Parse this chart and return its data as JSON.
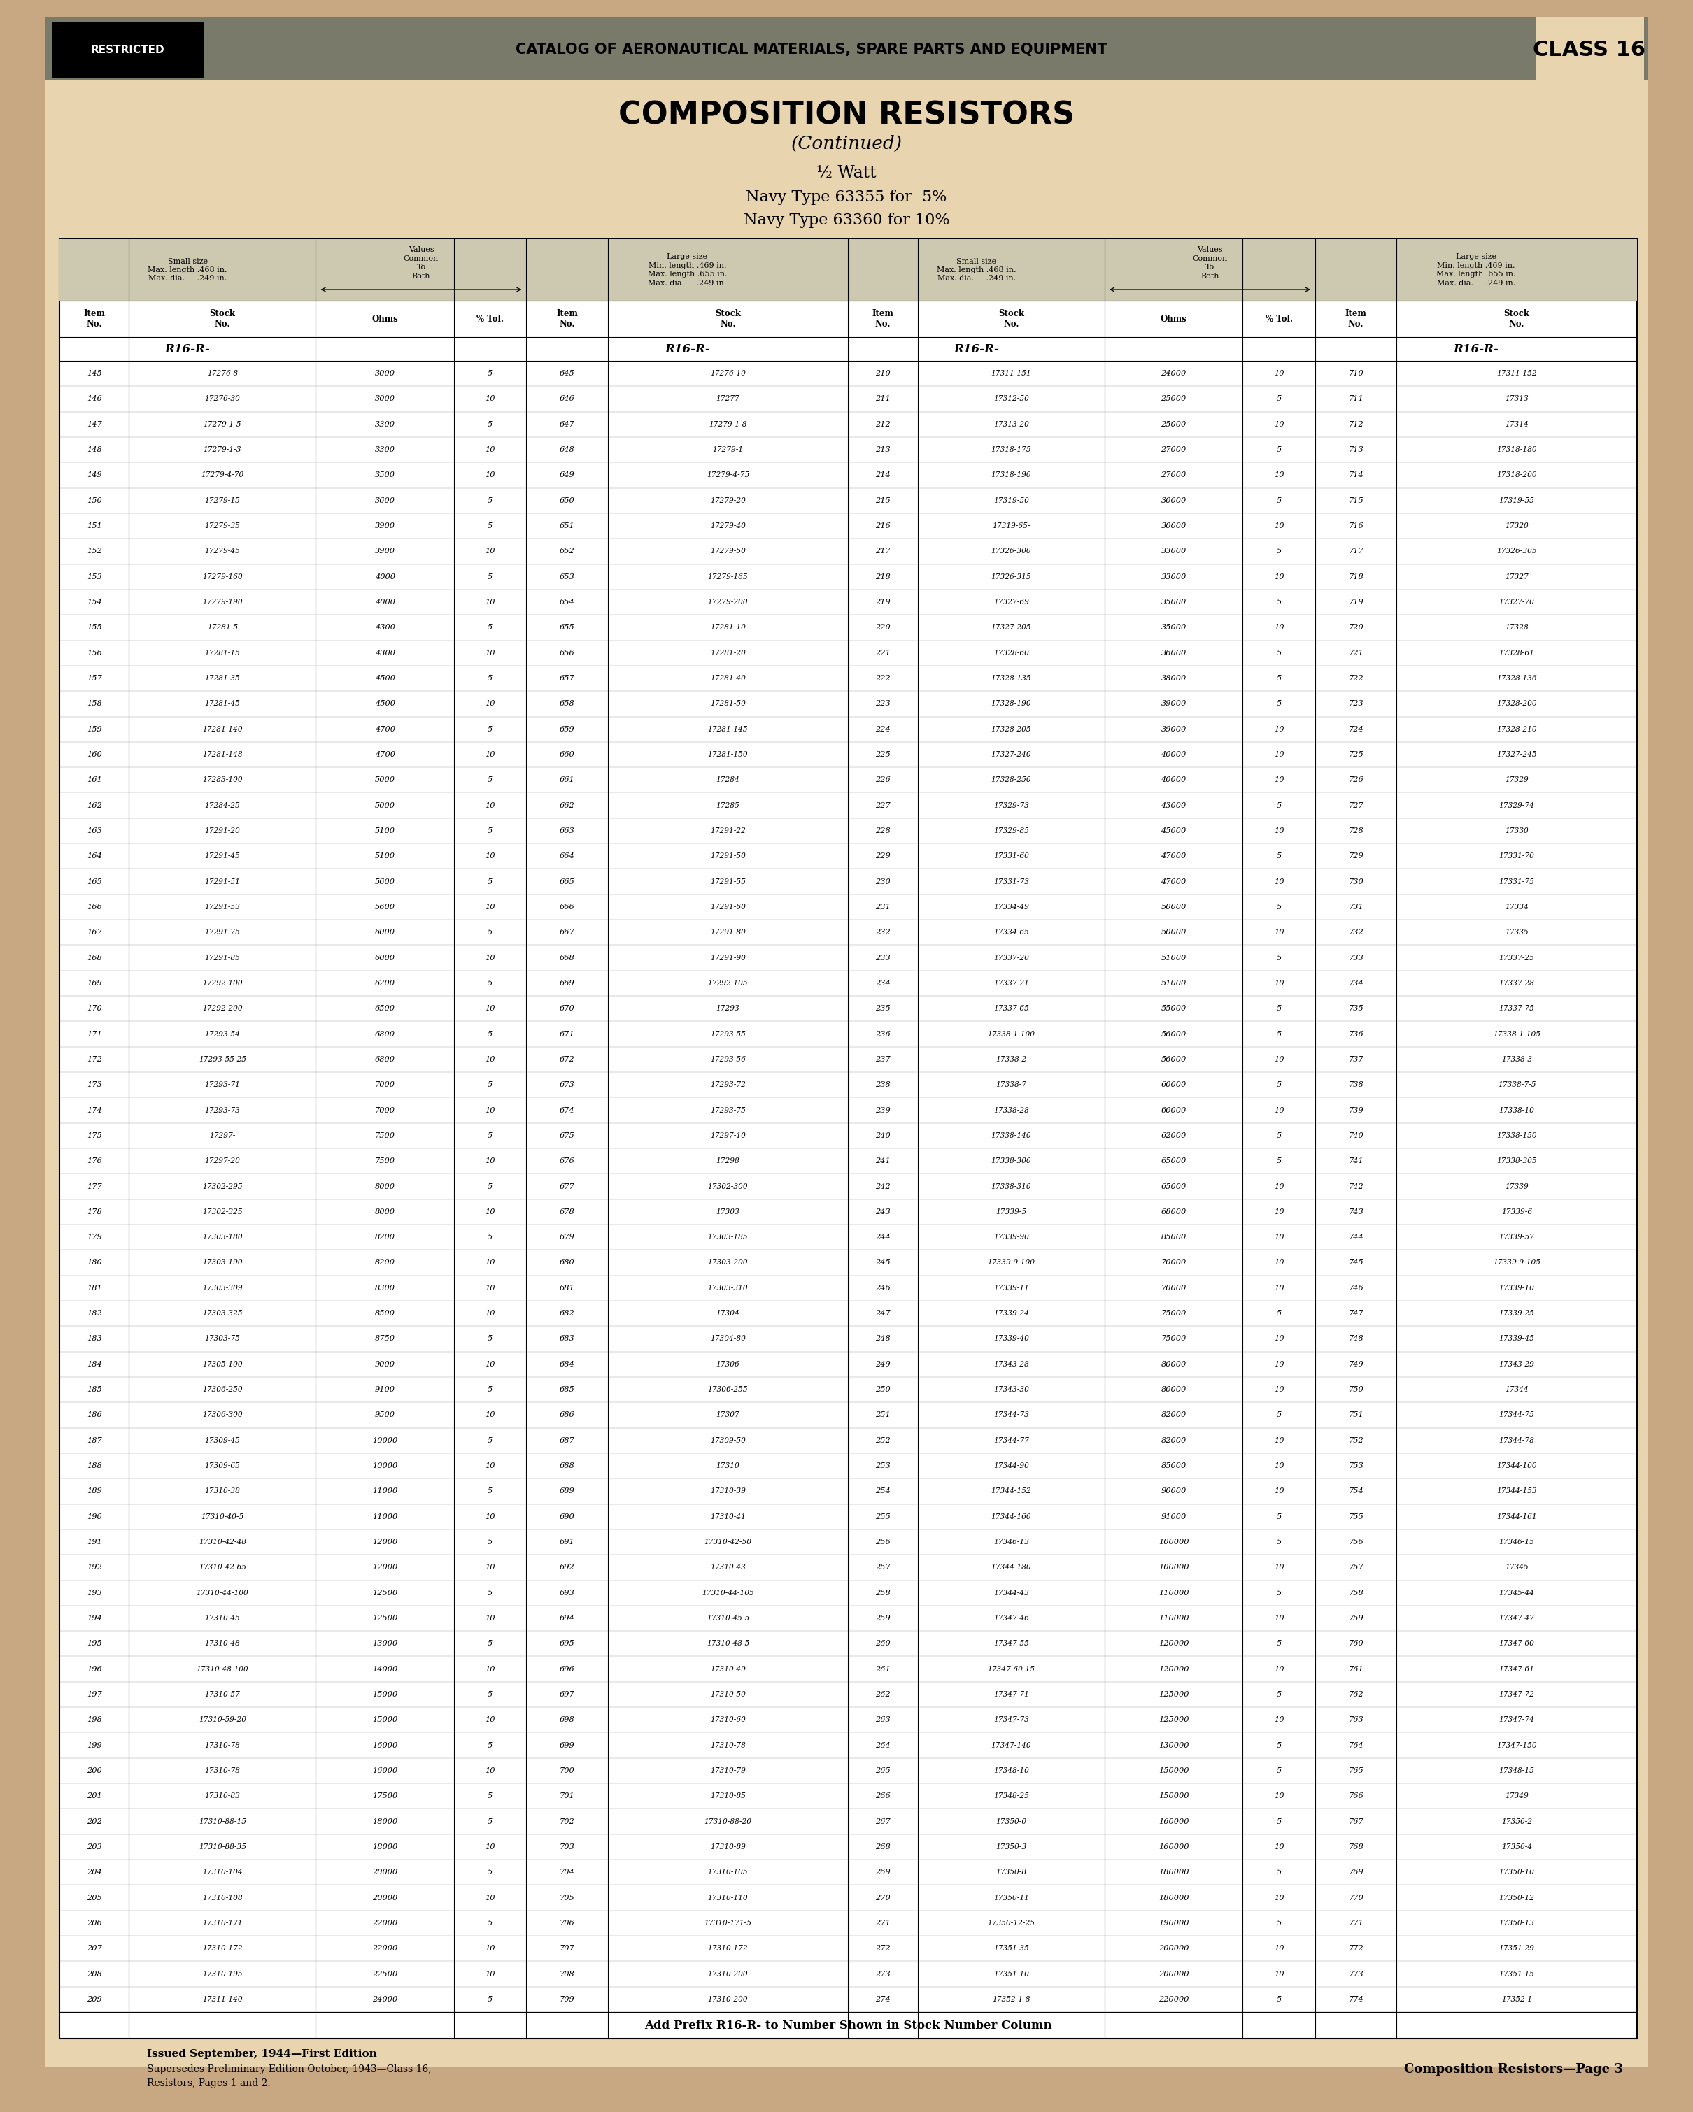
{
  "bg_color": "#c8a882",
  "paper_color": "#e8d5b0",
  "header_bg": "#7a7a6a",
  "title_main": "COMPOSITION RESISTORS",
  "title_sub": "(Continued)",
  "title_watt": "½ Watt",
  "title_navy1": "Navy Type 63355 for  5%",
  "title_navy2": "Navy Type 63360 for 10%",
  "restricted_text": "RESTRICTED",
  "header_catalog": "CATALOG OF AERONAUTICAL MATERIALS, SPARE PARTS AND EQUIPMENT",
  "class_text": "CLASS 16",
  "footer_line1": "Add Prefix R16-R- to Number Shown in Stock Number Column",
  "footer_issued": "Issued September, 1944—First Edition",
  "footer_supersedes": "Supersedes Preliminary Edition October, 1943—Class 16,",
  "footer_resistors": "Resistors, Pages 1 and 2.",
  "footer_page": "Composition Resistors—Page 3",
  "left_data": [
    [
      "145",
      "17276-8",
      "3000",
      "5",
      "645",
      "17276-10"
    ],
    [
      "146",
      "17276-30",
      "3000",
      "10",
      "646",
      "17277"
    ],
    [
      "147",
      "17279-1-5",
      "3300",
      "5",
      "647",
      "17279-1-8"
    ],
    [
      "148",
      "17279-1-3",
      "3300",
      "10",
      "648",
      "17279-1"
    ],
    [
      "149",
      "17279-4-70",
      "3500",
      "10",
      "649",
      "17279-4-75"
    ],
    [
      "150",
      "17279-15",
      "3600",
      "5",
      "650",
      "17279-20"
    ],
    [
      "151",
      "17279-35",
      "3900",
      "5",
      "651",
      "17279-40"
    ],
    [
      "152",
      "17279-45",
      "3900",
      "10",
      "652",
      "17279-50"
    ],
    [
      "153",
      "17279-160",
      "4000",
      "5",
      "653",
      "17279-165"
    ],
    [
      "154",
      "17279-190",
      "4000",
      "10",
      "654",
      "17279-200"
    ],
    [
      "155",
      "17281-5",
      "4300",
      "5",
      "655",
      "17281-10"
    ],
    [
      "156",
      "17281-15",
      "4300",
      "10",
      "656",
      "17281-20"
    ],
    [
      "157",
      "17281-35",
      "4500",
      "5",
      "657",
      "17281-40"
    ],
    [
      "158",
      "17281-45",
      "4500",
      "10",
      "658",
      "17281-50"
    ],
    [
      "159",
      "17281-140",
      "4700",
      "5",
      "659",
      "17281-145"
    ],
    [
      "160",
      "17281-148",
      "4700",
      "10",
      "660",
      "17281-150"
    ],
    [
      "161",
      "17283-100",
      "5000",
      "5",
      "661",
      "17284"
    ],
    [
      "162",
      "17284-25",
      "5000",
      "10",
      "662",
      "17285"
    ],
    [
      "163",
      "17291-20",
      "5100",
      "5",
      "663",
      "17291-22"
    ],
    [
      "164",
      "17291-45",
      "5100",
      "10",
      "664",
      "17291-50"
    ],
    [
      "165",
      "17291-51",
      "5600",
      "5",
      "665",
      "17291-55"
    ],
    [
      "166",
      "17291-53",
      "5600",
      "10",
      "666",
      "17291-60"
    ],
    [
      "167",
      "17291-75",
      "6000",
      "5",
      "667",
      "17291-80"
    ],
    [
      "168",
      "17291-85",
      "6000",
      "10",
      "668",
      "17291-90"
    ],
    [
      "169",
      "17292-100",
      "6200",
      "5",
      "669",
      "17292-105"
    ],
    [
      "170",
      "17292-200",
      "6500",
      "10",
      "670",
      "17293"
    ],
    [
      "171",
      "17293-54",
      "6800",
      "5",
      "671",
      "17293-55"
    ],
    [
      "172",
      "17293-55-25",
      "6800",
      "10",
      "672",
      "17293-56"
    ],
    [
      "173",
      "17293-71",
      "7000",
      "5",
      "673",
      "17293-72"
    ],
    [
      "174",
      "17293-73",
      "7000",
      "10",
      "674",
      "17293-75"
    ],
    [
      "175",
      "17297-",
      "7500",
      "5",
      "675",
      "17297-10"
    ],
    [
      "176",
      "17297-20",
      "7500",
      "10",
      "676",
      "17298"
    ],
    [
      "177",
      "17302-295",
      "8000",
      "5",
      "677",
      "17302-300"
    ],
    [
      "178",
      "17302-325",
      "8000",
      "10",
      "678",
      "17303"
    ],
    [
      "179",
      "17303-180",
      "8200",
      "5",
      "679",
      "17303-185"
    ],
    [
      "180",
      "17303-190",
      "8200",
      "10",
      "680",
      "17303-200"
    ],
    [
      "181",
      "17303-309",
      "8300",
      "10",
      "681",
      "17303-310"
    ],
    [
      "182",
      "17303-325",
      "8500",
      "10",
      "682",
      "17304"
    ],
    [
      "183",
      "17303-75",
      "8750",
      "5",
      "683",
      "17304-80"
    ],
    [
      "184",
      "17305-100",
      "9000",
      "10",
      "684",
      "17306"
    ],
    [
      "185",
      "17306-250",
      "9100",
      "5",
      "685",
      "17306-255"
    ],
    [
      "186",
      "17306-300",
      "9500",
      "10",
      "686",
      "17307"
    ],
    [
      "187",
      "17309-45",
      "10000",
      "5",
      "687",
      "17309-50"
    ],
    [
      "188",
      "17309-65",
      "10000",
      "10",
      "688",
      "17310"
    ],
    [
      "189",
      "17310-38",
      "11000",
      "5",
      "689",
      "17310-39"
    ],
    [
      "190",
      "17310-40-5",
      "11000",
      "10",
      "690",
      "17310-41"
    ],
    [
      "191",
      "17310-42-48",
      "12000",
      "5",
      "691",
      "17310-42-50"
    ],
    [
      "192",
      "17310-42-65",
      "12000",
      "10",
      "692",
      "17310-43"
    ],
    [
      "193",
      "17310-44-100",
      "12500",
      "5",
      "693",
      "17310-44-105"
    ],
    [
      "194",
      "17310-45",
      "12500",
      "10",
      "694",
      "17310-45-5"
    ],
    [
      "195",
      "17310-48",
      "13000",
      "5",
      "695",
      "17310-48-5"
    ],
    [
      "196",
      "17310-48-100",
      "14000",
      "10",
      "696",
      "17310-49"
    ],
    [
      "197",
      "17310-57",
      "15000",
      "5",
      "697",
      "17310-50"
    ],
    [
      "198",
      "17310-59-20",
      "15000",
      "10",
      "698",
      "17310-60"
    ],
    [
      "199",
      "17310-78",
      "16000",
      "5",
      "699",
      "17310-78"
    ],
    [
      "200",
      "17310-78",
      "16000",
      "10",
      "700",
      "17310-79"
    ],
    [
      "201",
      "17310-83",
      "17500",
      "5",
      "701",
      "17310-85"
    ],
    [
      "202",
      "17310-88-15",
      "18000",
      "5",
      "702",
      "17310-88-20"
    ],
    [
      "203",
      "17310-88-35",
      "18000",
      "10",
      "703",
      "17310-89"
    ],
    [
      "204",
      "17310-104",
      "20000",
      "5",
      "704",
      "17310-105"
    ],
    [
      "205",
      "17310-108",
      "20000",
      "10",
      "705",
      "17310-110"
    ],
    [
      "206",
      "17310-171",
      "22000",
      "5",
      "706",
      "17310-171-5"
    ],
    [
      "207",
      "17310-172",
      "22000",
      "10",
      "707",
      "17310-172"
    ],
    [
      "208",
      "17310-195",
      "22500",
      "10",
      "708",
      "17310-200"
    ],
    [
      "209",
      "17311-140",
      "24000",
      "5",
      "709",
      "17310-200"
    ]
  ],
  "right_data": [
    [
      "210",
      "17311-151",
      "24000",
      "10",
      "710",
      "17311-152"
    ],
    [
      "211",
      "17312-50",
      "25000",
      "5",
      "711",
      "17313"
    ],
    [
      "212",
      "17313-20",
      "25000",
      "10",
      "712",
      "17314"
    ],
    [
      "213",
      "17318-175",
      "27000",
      "5",
      "713",
      "17318-180"
    ],
    [
      "214",
      "17318-190",
      "27000",
      "10",
      "714",
      "17318-200"
    ],
    [
      "215",
      "17319-50",
      "30000",
      "5",
      "715",
      "17319-55"
    ],
    [
      "216",
      "17319-65-",
      "30000",
      "10",
      "716",
      "17320"
    ],
    [
      "217",
      "17326-300",
      "33000",
      "5",
      "717",
      "17326-305"
    ],
    [
      "218",
      "17326-315",
      "33000",
      "10",
      "718",
      "17327"
    ],
    [
      "219",
      "17327-69",
      "35000",
      "5",
      "719",
      "17327-70"
    ],
    [
      "220",
      "17327-205",
      "35000",
      "10",
      "720",
      "17328"
    ],
    [
      "221",
      "17328-60",
      "36000",
      "5",
      "721",
      "17328-61"
    ],
    [
      "222",
      "17328-135",
      "38000",
      "5",
      "722",
      "17328-136"
    ],
    [
      "223",
      "17328-190",
      "39000",
      "5",
      "723",
      "17328-200"
    ],
    [
      "224",
      "17328-205",
      "39000",
      "10",
      "724",
      "17328-210"
    ],
    [
      "225",
      "17327-240",
      "40000",
      "10",
      "725",
      "17327-245"
    ],
    [
      "226",
      "17328-250",
      "40000",
      "10",
      "726",
      "17329"
    ],
    [
      "227",
      "17329-73",
      "43000",
      "5",
      "727",
      "17329-74"
    ],
    [
      "228",
      "17329-85",
      "45000",
      "10",
      "728",
      "17330"
    ],
    [
      "229",
      "17331-60",
      "47000",
      "5",
      "729",
      "17331-70"
    ],
    [
      "230",
      "17331-73",
      "47000",
      "10",
      "730",
      "17331-75"
    ],
    [
      "231",
      "17334-49",
      "50000",
      "5",
      "731",
      "17334"
    ],
    [
      "232",
      "17334-65",
      "50000",
      "10",
      "732",
      "17335"
    ],
    [
      "233",
      "17337-20",
      "51000",
      "5",
      "733",
      "17337-25"
    ],
    [
      "234",
      "17337-21",
      "51000",
      "10",
      "734",
      "17337-28"
    ],
    [
      "235",
      "17337-65",
      "55000",
      "5",
      "735",
      "17337-75"
    ],
    [
      "236",
      "17338-1-100",
      "56000",
      "5",
      "736",
      "17338-1-105"
    ],
    [
      "237",
      "17338-2",
      "56000",
      "10",
      "737",
      "17338-3"
    ],
    [
      "238",
      "17338-7",
      "60000",
      "5",
      "738",
      "17338-7-5"
    ],
    [
      "239",
      "17338-28",
      "60000",
      "10",
      "739",
      "17338-10"
    ],
    [
      "240",
      "17338-140",
      "62000",
      "5",
      "740",
      "17338-150"
    ],
    [
      "241",
      "17338-300",
      "65000",
      "5",
      "741",
      "17338-305"
    ],
    [
      "242",
      "17338-310",
      "65000",
      "10",
      "742",
      "17339"
    ],
    [
      "243",
      "17339-5",
      "68000",
      "10",
      "743",
      "17339-6"
    ],
    [
      "244",
      "17339-90",
      "85000",
      "10",
      "744",
      "17339-57"
    ],
    [
      "245",
      "17339-9-100",
      "70000",
      "10",
      "745",
      "17339-9-105"
    ],
    [
      "246",
      "17339-11",
      "70000",
      "10",
      "746",
      "17339-10"
    ],
    [
      "247",
      "17339-24",
      "75000",
      "5",
      "747",
      "17339-25"
    ],
    [
      "248",
      "17339-40",
      "75000",
      "10",
      "748",
      "17339-45"
    ],
    [
      "249",
      "17343-28",
      "80000",
      "10",
      "749",
      "17343-29"
    ],
    [
      "250",
      "17343-30",
      "80000",
      "10",
      "750",
      "17344"
    ],
    [
      "251",
      "17344-73",
      "82000",
      "5",
      "751",
      "17344-75"
    ],
    [
      "252",
      "17344-77",
      "82000",
      "10",
      "752",
      "17344-78"
    ],
    [
      "253",
      "17344-90",
      "85000",
      "10",
      "753",
      "17344-100"
    ],
    [
      "254",
      "17344-152",
      "90000",
      "10",
      "754",
      "17344-153"
    ],
    [
      "255",
      "17344-160",
      "91000",
      "5",
      "755",
      "17344-161"
    ],
    [
      "256",
      "17346-13",
      "100000",
      "5",
      "756",
      "17346-15"
    ],
    [
      "257",
      "17344-180",
      "100000",
      "10",
      "757",
      "17345"
    ],
    [
      "258",
      "17344-43",
      "110000",
      "5",
      "758",
      "17345-44"
    ],
    [
      "259",
      "17347-46",
      "110000",
      "10",
      "759",
      "17347-47"
    ],
    [
      "260",
      "17347-55",
      "120000",
      "5",
      "760",
      "17347-60"
    ],
    [
      "261",
      "17347-60-15",
      "120000",
      "10",
      "761",
      "17347-61"
    ],
    [
      "262",
      "17347-71",
      "125000",
      "5",
      "762",
      "17347-72"
    ],
    [
      "263",
      "17347-73",
      "125000",
      "10",
      "763",
      "17347-74"
    ],
    [
      "264",
      "17347-140",
      "130000",
      "5",
      "764",
      "17347-150"
    ],
    [
      "265",
      "17348-10",
      "150000",
      "5",
      "765",
      "17348-15"
    ],
    [
      "266",
      "17348-25",
      "150000",
      "10",
      "766",
      "17349"
    ],
    [
      "267",
      "17350-0",
      "160000",
      "5",
      "767",
      "17350-2"
    ],
    [
      "268",
      "17350-3",
      "160000",
      "10",
      "768",
      "17350-4"
    ],
    [
      "269",
      "17350-8",
      "180000",
      "5",
      "769",
      "17350-10"
    ],
    [
      "270",
      "17350-11",
      "180000",
      "10",
      "770",
      "17350-12"
    ],
    [
      "271",
      "17350-12-25",
      "190000",
      "5",
      "771",
      "17350-13"
    ],
    [
      "272",
      "17351-35",
      "200000",
      "10",
      "772",
      "17351-29"
    ],
    [
      "273",
      "17351-10",
      "200000",
      "10",
      "773",
      "17351-15"
    ],
    [
      "274",
      "17352-1-8",
      "220000",
      "5",
      "774",
      "17352-1"
    ]
  ]
}
